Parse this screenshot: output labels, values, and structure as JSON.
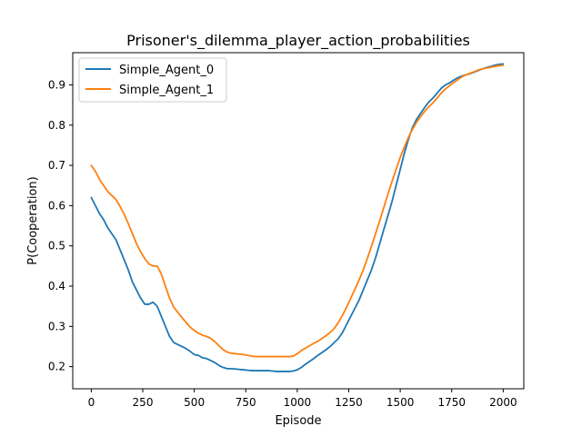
{
  "chart_data": {
    "type": "line",
    "title": "Prisoner's_dilemma_player_action_probabilities",
    "xlabel": "Episode",
    "ylabel": "P(Cooperation)",
    "xlim": [
      -90,
      2100
    ],
    "ylim": [
      0.145,
      0.98
    ],
    "xticks": [
      0,
      250,
      500,
      750,
      1000,
      1250,
      1500,
      1750,
      2000
    ],
    "yticks": [
      0.2,
      0.3,
      0.4,
      0.5,
      0.6,
      0.7,
      0.8,
      0.9
    ],
    "ytick_labels": [
      "0.2",
      "0.3",
      "0.4",
      "0.5",
      "0.6",
      "0.7",
      "0.8",
      "0.9"
    ],
    "grid": false,
    "legend_position": "top-left",
    "x": [
      0,
      20,
      40,
      60,
      80,
      100,
      120,
      140,
      160,
      180,
      200,
      220,
      240,
      260,
      280,
      300,
      320,
      340,
      360,
      380,
      400,
      420,
      440,
      460,
      480,
      500,
      520,
      540,
      560,
      580,
      600,
      620,
      640,
      660,
      680,
      700,
      720,
      740,
      760,
      780,
      800,
      820,
      840,
      860,
      880,
      900,
      920,
      940,
      960,
      980,
      1000,
      1020,
      1040,
      1060,
      1080,
      1100,
      1120,
      1140,
      1160,
      1180,
      1200,
      1220,
      1240,
      1260,
      1280,
      1300,
      1320,
      1340,
      1360,
      1380,
      1400,
      1420,
      1440,
      1460,
      1480,
      1500,
      1520,
      1540,
      1560,
      1580,
      1600,
      1620,
      1640,
      1660,
      1680,
      1700,
      1720,
      1740,
      1760,
      1780,
      1800,
      1820,
      1840,
      1860,
      1880,
      1900,
      1920,
      1940,
      1960,
      1980,
      2000
    ],
    "series": [
      {
        "name": "Simple_Agent_0",
        "color": "#1f77b4",
        "values": [
          0.62,
          0.6,
          0.58,
          0.565,
          0.545,
          0.53,
          0.515,
          0.49,
          0.465,
          0.44,
          0.41,
          0.39,
          0.37,
          0.355,
          0.355,
          0.36,
          0.35,
          0.325,
          0.3,
          0.275,
          0.26,
          0.255,
          0.25,
          0.245,
          0.238,
          0.23,
          0.228,
          0.222,
          0.22,
          0.215,
          0.21,
          0.203,
          0.198,
          0.195,
          0.195,
          0.194,
          0.193,
          0.192,
          0.191,
          0.19,
          0.19,
          0.19,
          0.19,
          0.19,
          0.189,
          0.188,
          0.188,
          0.188,
          0.188,
          0.189,
          0.192,
          0.198,
          0.206,
          0.213,
          0.22,
          0.228,
          0.235,
          0.242,
          0.25,
          0.26,
          0.27,
          0.285,
          0.305,
          0.325,
          0.345,
          0.365,
          0.39,
          0.415,
          0.44,
          0.47,
          0.505,
          0.54,
          0.575,
          0.61,
          0.65,
          0.69,
          0.73,
          0.765,
          0.795,
          0.815,
          0.83,
          0.845,
          0.858,
          0.868,
          0.88,
          0.892,
          0.9,
          0.905,
          0.912,
          0.918,
          0.922,
          0.925,
          0.928,
          0.932,
          0.936,
          0.94,
          0.943,
          0.946,
          0.949,
          0.951,
          0.952
        ]
      },
      {
        "name": "Simple_Agent_1",
        "color": "#ff7f0e",
        "values": [
          0.7,
          0.685,
          0.665,
          0.65,
          0.635,
          0.625,
          0.615,
          0.598,
          0.578,
          0.555,
          0.53,
          0.505,
          0.485,
          0.468,
          0.455,
          0.45,
          0.45,
          0.43,
          0.4,
          0.37,
          0.348,
          0.335,
          0.322,
          0.31,
          0.298,
          0.29,
          0.283,
          0.278,
          0.275,
          0.27,
          0.262,
          0.252,
          0.242,
          0.236,
          0.233,
          0.232,
          0.231,
          0.23,
          0.228,
          0.226,
          0.225,
          0.225,
          0.225,
          0.225,
          0.225,
          0.225,
          0.225,
          0.225,
          0.225,
          0.226,
          0.232,
          0.24,
          0.246,
          0.252,
          0.258,
          0.263,
          0.27,
          0.277,
          0.285,
          0.295,
          0.31,
          0.328,
          0.348,
          0.37,
          0.392,
          0.415,
          0.44,
          0.468,
          0.498,
          0.53,
          0.562,
          0.595,
          0.628,
          0.66,
          0.69,
          0.72,
          0.745,
          0.77,
          0.79,
          0.808,
          0.822,
          0.835,
          0.846,
          0.856,
          0.868,
          0.88,
          0.89,
          0.898,
          0.906,
          0.913,
          0.92,
          0.925,
          0.929,
          0.933,
          0.937,
          0.94,
          0.942,
          0.944,
          0.946,
          0.948,
          0.949
        ]
      }
    ]
  }
}
